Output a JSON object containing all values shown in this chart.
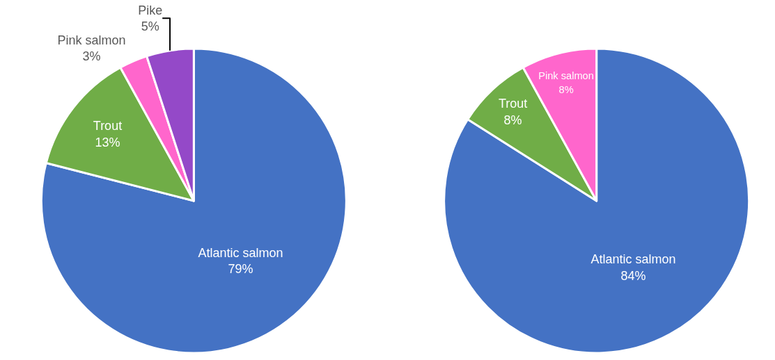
{
  "chart_data": [
    {
      "type": "pie",
      "categories": [
        "Atlantic salmon",
        "Trout",
        "Pink salmon",
        "Pike"
      ],
      "values": [
        79,
        13,
        3,
        5
      ],
      "value_labels": [
        "79%",
        "13%",
        "3%",
        "5%"
      ],
      "colors": [
        "#4472c4",
        "#70ad47",
        "#ff66cc",
        "#9449c8"
      ],
      "data_labels": true,
      "legend": false
    },
    {
      "type": "pie",
      "categories": [
        "Atlantic salmon",
        "Trout",
        "Pink salmon"
      ],
      "values": [
        84,
        8,
        8
      ],
      "value_labels": [
        "84%",
        "8%",
        "8%"
      ],
      "colors": [
        "#4472c4",
        "#70ad47",
        "#ff66cc"
      ],
      "data_labels": true,
      "legend": false
    }
  ]
}
